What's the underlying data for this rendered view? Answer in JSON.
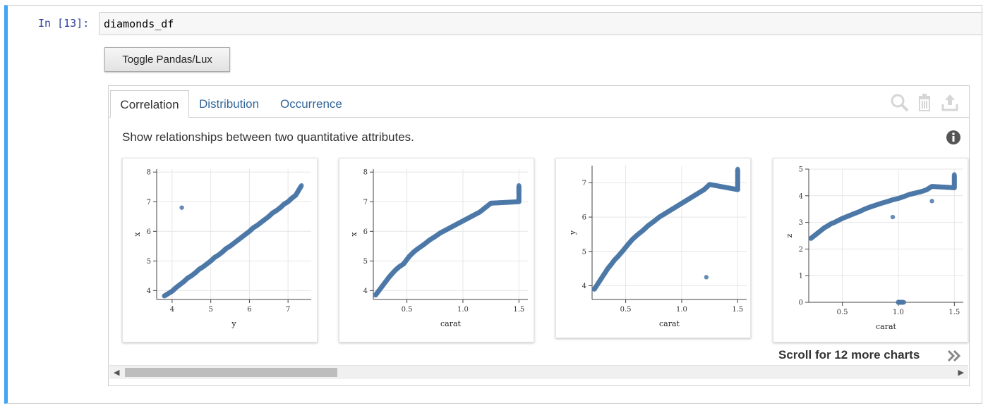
{
  "cell": {
    "prompt": "In [13]:",
    "code": "diamonds_df"
  },
  "toggle_label": "Toggle Pandas/Lux",
  "tabs": [
    "Correlation",
    "Distribution",
    "Occurrence"
  ],
  "description": "Show relationships between two quantitative attributes.",
  "scroll_message": "Scroll for 12 more charts",
  "icons": [
    "search-icon",
    "trash-icon",
    "export-icon",
    "info-icon",
    "double-chevron-right-icon"
  ],
  "colors": {
    "point": "#4c78a8",
    "accent": "#42a5f5",
    "tab_text": "#336699"
  },
  "chart_data": [
    {
      "type": "scatter",
      "xlabel": "y",
      "ylabel": "x",
      "xlim": [
        3.6,
        7.6
      ],
      "ylim": [
        3.7,
        8.1
      ],
      "xticks": [
        4,
        5,
        6,
        7
      ],
      "yticks": [
        4,
        5,
        6,
        7,
        8
      ],
      "points": [
        [
          3.8,
          3.82
        ],
        [
          3.9,
          3.9
        ],
        [
          4.0,
          3.98
        ],
        [
          4.1,
          4.1
        ],
        [
          4.2,
          4.2
        ],
        [
          4.3,
          4.3
        ],
        [
          4.4,
          4.42
        ],
        [
          4.5,
          4.5
        ],
        [
          4.6,
          4.6
        ],
        [
          4.7,
          4.72
        ],
        [
          4.8,
          4.8
        ],
        [
          4.9,
          4.9
        ],
        [
          5.0,
          5.0
        ],
        [
          5.1,
          5.12
        ],
        [
          5.2,
          5.2
        ],
        [
          5.3,
          5.3
        ],
        [
          5.4,
          5.42
        ],
        [
          5.5,
          5.5
        ],
        [
          5.6,
          5.6
        ],
        [
          5.7,
          5.7
        ],
        [
          5.8,
          5.8
        ],
        [
          5.9,
          5.9
        ],
        [
          6.0,
          6.0
        ],
        [
          6.1,
          6.12
        ],
        [
          6.2,
          6.2
        ],
        [
          6.3,
          6.3
        ],
        [
          6.4,
          6.4
        ],
        [
          6.5,
          6.5
        ],
        [
          6.6,
          6.62
        ],
        [
          6.7,
          6.7
        ],
        [
          6.8,
          6.8
        ],
        [
          6.9,
          6.92
        ],
        [
          7.0,
          7.0
        ],
        [
          7.1,
          7.12
        ],
        [
          7.2,
          7.22
        ],
        [
          7.35,
          7.55
        ],
        [
          4.25,
          6.8
        ]
      ]
    },
    {
      "type": "scatter",
      "xlabel": "carat",
      "ylabel": "x",
      "xlim": [
        0.2,
        1.58
      ],
      "ylim": [
        3.7,
        8.1
      ],
      "xticks": [
        0.5,
        1.0,
        1.5
      ],
      "yticks": [
        4,
        5,
        6,
        7,
        8
      ],
      "points": [
        [
          0.22,
          3.85
        ],
        [
          0.25,
          4.0
        ],
        [
          0.28,
          4.15
        ],
        [
          0.31,
          4.3
        ],
        [
          0.34,
          4.45
        ],
        [
          0.37,
          4.58
        ],
        [
          0.4,
          4.7
        ],
        [
          0.43,
          4.8
        ],
        [
          0.47,
          4.9
        ],
        [
          0.52,
          5.15
        ],
        [
          0.56,
          5.3
        ],
        [
          0.6,
          5.42
        ],
        [
          0.65,
          5.55
        ],
        [
          0.7,
          5.7
        ],
        [
          0.75,
          5.82
        ],
        [
          0.8,
          5.95
        ],
        [
          0.85,
          6.05
        ],
        [
          0.9,
          6.15
        ],
        [
          0.95,
          6.25
        ],
        [
          1.0,
          6.35
        ],
        [
          1.05,
          6.45
        ],
        [
          1.1,
          6.55
        ],
        [
          1.15,
          6.65
        ],
        [
          1.2,
          6.8
        ],
        [
          1.25,
          6.95
        ],
        [
          1.5,
          7.0
        ],
        [
          1.5,
          7.3
        ],
        [
          1.5,
          7.55
        ]
      ]
    },
    {
      "type": "scatter",
      "xlabel": "carat",
      "ylabel": "y",
      "xlim": [
        0.2,
        1.58
      ],
      "ylim": [
        3.6,
        7.5
      ],
      "xticks": [
        0.5,
        1.0,
        1.5
      ],
      "yticks": [
        4,
        5,
        6,
        7
      ],
      "points": [
        [
          0.22,
          3.9
        ],
        [
          0.25,
          4.05
        ],
        [
          0.28,
          4.2
        ],
        [
          0.31,
          4.35
        ],
        [
          0.34,
          4.5
        ],
        [
          0.37,
          4.62
        ],
        [
          0.4,
          4.75
        ],
        [
          0.43,
          4.85
        ],
        [
          0.47,
          5.0
        ],
        [
          0.52,
          5.2
        ],
        [
          0.56,
          5.35
        ],
        [
          0.6,
          5.47
        ],
        [
          0.65,
          5.6
        ],
        [
          0.7,
          5.75
        ],
        [
          0.75,
          5.87
        ],
        [
          0.8,
          6.0
        ],
        [
          0.85,
          6.1
        ],
        [
          0.9,
          6.2
        ],
        [
          0.95,
          6.3
        ],
        [
          1.0,
          6.4
        ],
        [
          1.05,
          6.5
        ],
        [
          1.1,
          6.6
        ],
        [
          1.15,
          6.7
        ],
        [
          1.2,
          6.8
        ],
        [
          1.25,
          6.95
        ],
        [
          1.5,
          6.8
        ],
        [
          1.5,
          7.1
        ],
        [
          1.5,
          7.4
        ],
        [
          1.22,
          4.25
        ]
      ]
    },
    {
      "type": "scatter",
      "xlabel": "carat",
      "ylabel": "z",
      "xlim": [
        0.2,
        1.58
      ],
      "ylim": [
        0,
        5
      ],
      "xticks": [
        0.5,
        1.0,
        1.5
      ],
      "yticks": [
        0,
        1,
        2,
        3,
        4,
        5
      ],
      "points": [
        [
          0.22,
          2.4
        ],
        [
          0.25,
          2.5
        ],
        [
          0.28,
          2.6
        ],
        [
          0.31,
          2.7
        ],
        [
          0.34,
          2.8
        ],
        [
          0.37,
          2.87
        ],
        [
          0.4,
          2.95
        ],
        [
          0.43,
          3.0
        ],
        [
          0.5,
          3.15
        ],
        [
          0.56,
          3.25
        ],
        [
          0.6,
          3.32
        ],
        [
          0.65,
          3.4
        ],
        [
          0.7,
          3.5
        ],
        [
          0.75,
          3.58
        ],
        [
          0.8,
          3.65
        ],
        [
          0.85,
          3.72
        ],
        [
          0.9,
          3.78
        ],
        [
          0.95,
          3.85
        ],
        [
          1.0,
          3.9
        ],
        [
          1.05,
          3.97
        ],
        [
          1.1,
          4.05
        ],
        [
          1.15,
          4.1
        ],
        [
          1.2,
          4.15
        ],
        [
          1.25,
          4.22
        ],
        [
          1.3,
          4.35
        ],
        [
          1.5,
          4.3
        ],
        [
          1.5,
          4.55
        ],
        [
          1.5,
          4.8
        ],
        [
          1.0,
          0.0
        ],
        [
          1.05,
          0.0
        ],
        [
          0.95,
          3.2
        ],
        [
          1.3,
          3.8
        ]
      ]
    }
  ]
}
